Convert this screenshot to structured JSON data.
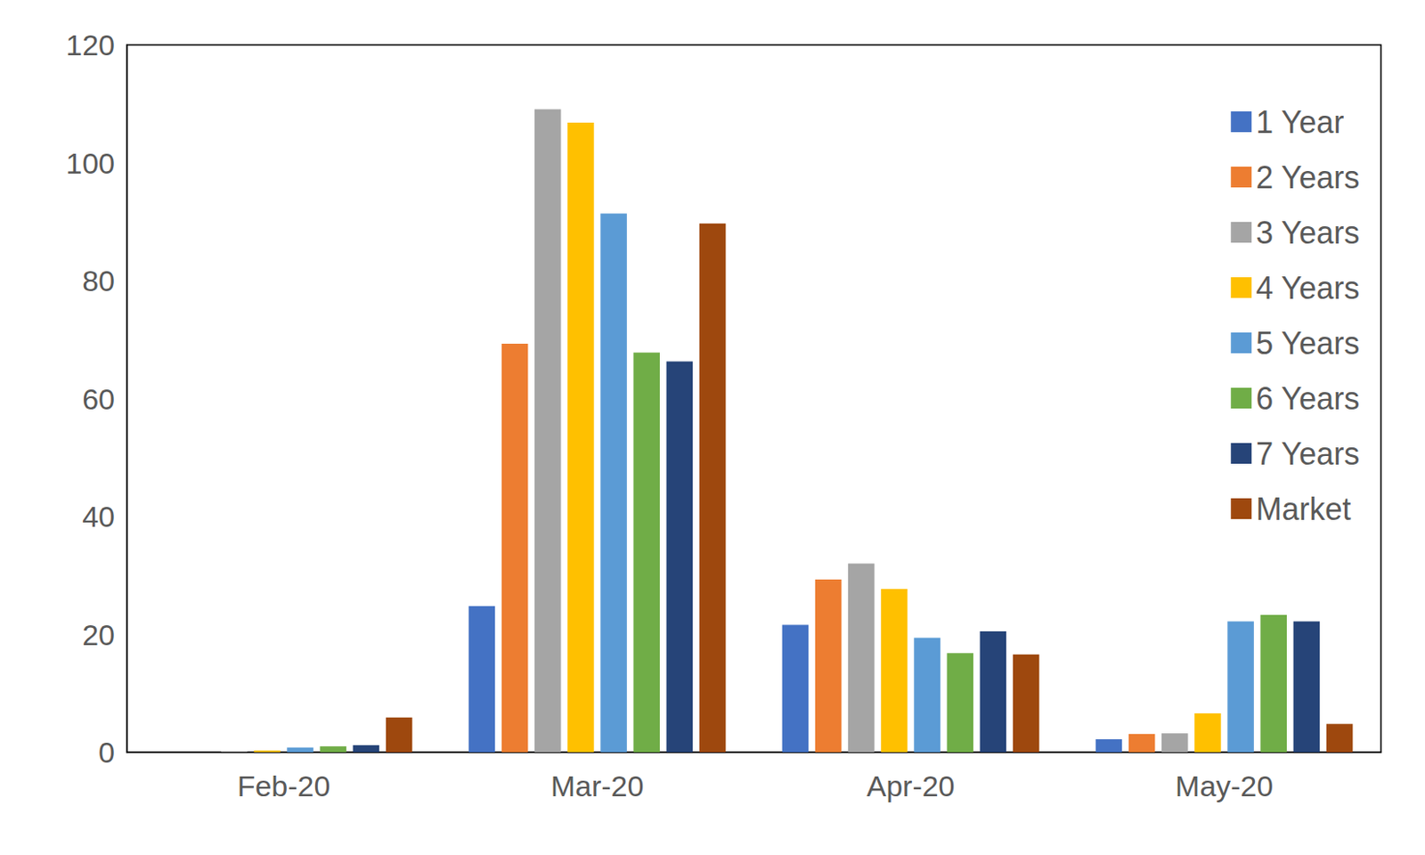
{
  "chart_data": {
    "type": "bar",
    "categories": [
      "Feb-20",
      "Mar-20",
      "Apr-20",
      "May-20"
    ],
    "series": [
      {
        "name": "1 Year",
        "color": "#4472C4",
        "values": [
          0,
          24.8,
          21.6,
          2.2
        ]
      },
      {
        "name": "2 Years",
        "color": "#ED7D31",
        "values": [
          0,
          69.3,
          29.3,
          3.1
        ]
      },
      {
        "name": "3 Years",
        "color": "#A5A5A5",
        "values": [
          0.1,
          109.1,
          32.0,
          3.2
        ]
      },
      {
        "name": "4 Years",
        "color": "#FFC000",
        "values": [
          0.3,
          106.8,
          27.7,
          6.6
        ]
      },
      {
        "name": "5 Years",
        "color": "#5B9BD5",
        "values": [
          0.8,
          91.4,
          19.4,
          22.2
        ]
      },
      {
        "name": "6 Years",
        "color": "#70AD47",
        "values": [
          1.0,
          67.8,
          16.8,
          23.3
        ]
      },
      {
        "name": "7 Years",
        "color": "#264478",
        "values": [
          1.2,
          66.3,
          20.5,
          22.2
        ]
      },
      {
        "name": "Market",
        "color": "#9E480E",
        "values": [
          5.9,
          89.7,
          16.6,
          4.8
        ]
      }
    ],
    "ylim": [
      0,
      120
    ],
    "yticks": [
      0,
      20,
      40,
      60,
      80,
      100,
      120
    ],
    "grid": false,
    "legend": "top right"
  }
}
